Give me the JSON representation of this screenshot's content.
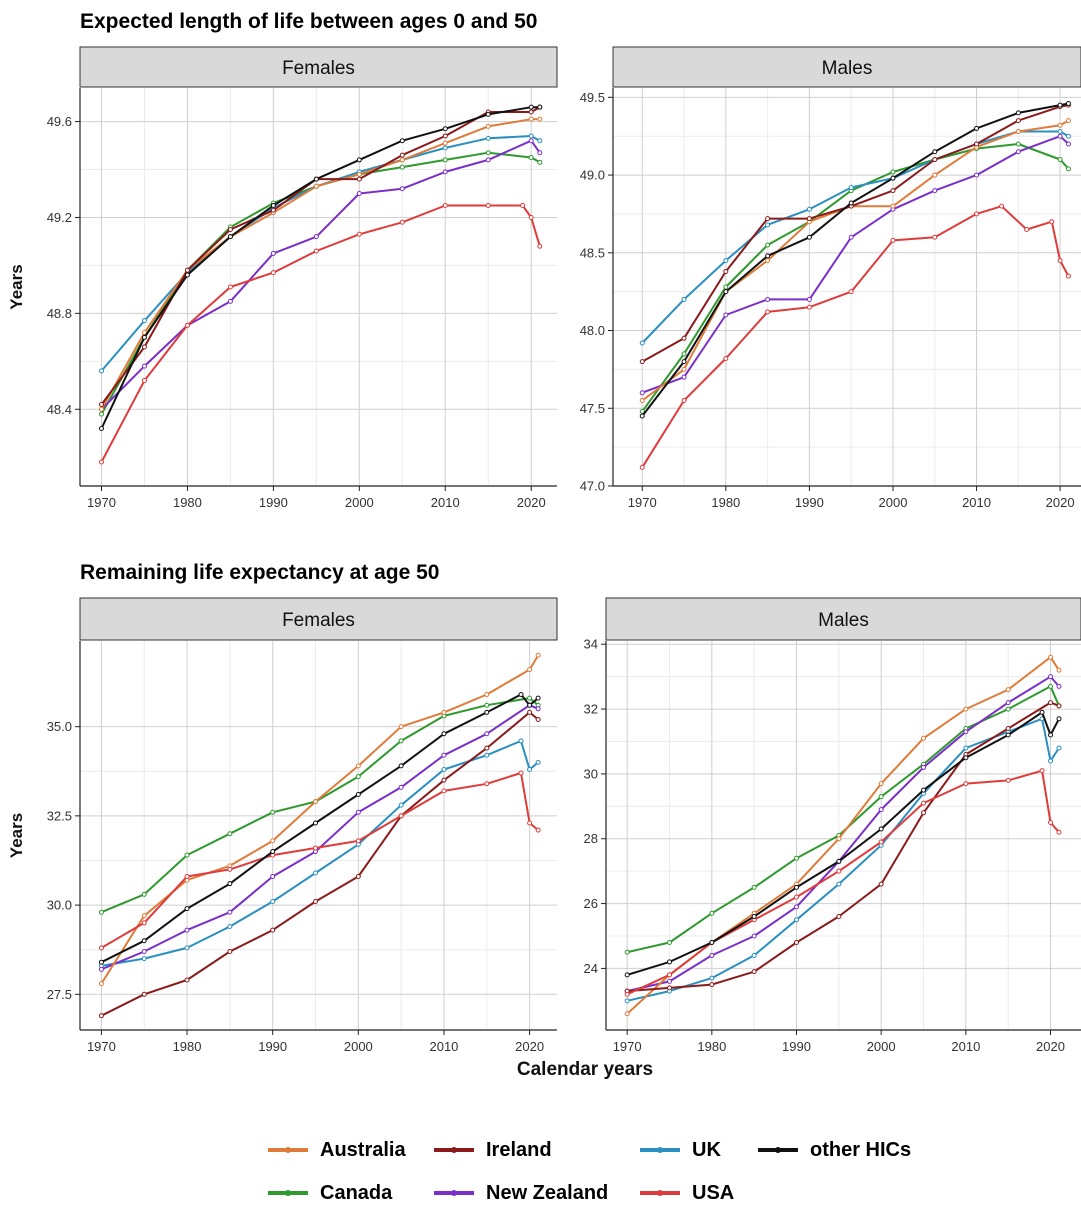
{
  "titles": {
    "top": "Expected length of life between ages 0 and 50",
    "bottom": "Remaining life expectancy at age 50"
  },
  "shared_xlabel": "Calendar years",
  "legend": [
    {
      "name": "Australia",
      "color": "#e07b39"
    },
    {
      "name": "Ireland",
      "color": "#8b1a1a"
    },
    {
      "name": "UK",
      "color": "#2a8fc1"
    },
    {
      "name": "other HICs",
      "color": "#111111"
    },
    {
      "name": "Canada",
      "color": "#2e9a2e"
    },
    {
      "name": "New Zealand",
      "color": "#7b2fc9"
    },
    {
      "name": "USA",
      "color": "#e03b3b"
    }
  ],
  "chart_data": [
    {
      "type": "line",
      "strip": "Females",
      "section": "Expected length of life between ages 0 and 50",
      "ylabel": "Years",
      "xlim": [
        1967.5,
        2023
      ],
      "ylim": [
        48.08,
        49.74
      ],
      "xticks": [
        1970,
        1980,
        1990,
        2000,
        2010,
        2020
      ],
      "yticks": [
        48.4,
        48.8,
        49.2,
        49.6
      ],
      "ytick_labels": [
        "48.4",
        "48.8",
        "49.2",
        "49.6"
      ],
      "series": [
        {
          "name": "Australia",
          "x": [
            1970,
            1975,
            1980,
            1985,
            1990,
            1995,
            2000,
            2005,
            2010,
            2015,
            2020,
            2021
          ],
          "y": [
            48.4,
            48.72,
            48.98,
            49.12,
            49.22,
            49.33,
            49.38,
            49.44,
            49.51,
            49.58,
            49.61,
            49.61
          ]
        },
        {
          "name": "Canada",
          "x": [
            1970,
            1975,
            1980,
            1985,
            1990,
            1995,
            2000,
            2005,
            2010,
            2015,
            2020,
            2021
          ],
          "y": [
            48.38,
            48.7,
            48.98,
            49.16,
            49.26,
            49.33,
            49.38,
            49.41,
            49.44,
            49.47,
            49.45,
            49.43
          ]
        },
        {
          "name": "Ireland",
          "x": [
            1970,
            1975,
            1980,
            1985,
            1990,
            1995,
            2000,
            2005,
            2010,
            2015,
            2020,
            2021
          ],
          "y": [
            48.42,
            48.66,
            48.98,
            49.15,
            49.23,
            49.36,
            49.36,
            49.46,
            49.54,
            49.64,
            49.64,
            49.66
          ]
        },
        {
          "name": "New Zealand",
          "x": [
            1970,
            1975,
            1980,
            1985,
            1990,
            1995,
            2000,
            2005,
            2010,
            2015,
            2020,
            2021
          ],
          "y": [
            48.4,
            48.58,
            48.75,
            48.85,
            49.05,
            49.12,
            49.3,
            49.32,
            49.39,
            49.44,
            49.52,
            49.47
          ]
        },
        {
          "name": "UK",
          "x": [
            1970,
            1975,
            1980,
            1985,
            1990,
            1995,
            2000,
            2005,
            2010,
            2015,
            2020,
            2021
          ],
          "y": [
            48.56,
            48.77,
            48.97,
            49.12,
            49.24,
            49.33,
            49.39,
            49.44,
            49.49,
            49.53,
            49.54,
            49.52
          ]
        },
        {
          "name": "USA",
          "x": [
            1970,
            1975,
            1980,
            1985,
            1990,
            1995,
            2000,
            2005,
            2010,
            2015,
            2019,
            2020,
            2021
          ],
          "y": [
            48.18,
            48.52,
            48.75,
            48.91,
            48.97,
            49.06,
            49.13,
            49.18,
            49.25,
            49.25,
            49.25,
            49.2,
            49.08
          ]
        },
        {
          "name": "other HICs",
          "x": [
            1970,
            1975,
            1980,
            1985,
            1990,
            1995,
            2000,
            2005,
            2010,
            2015,
            2020,
            2021
          ],
          "y": [
            48.32,
            48.7,
            48.96,
            49.12,
            49.25,
            49.36,
            49.44,
            49.52,
            49.57,
            49.63,
            49.66,
            49.66
          ]
        }
      ]
    },
    {
      "type": "line",
      "strip": "Males",
      "section": "Expected length of life between ages 0 and 50",
      "ylabel": "",
      "xlim": [
        1966.5,
        2022.5
      ],
      "ylim": [
        47.0,
        49.56
      ],
      "xticks": [
        1970,
        1980,
        1990,
        2000,
        2010,
        2020
      ],
      "yticks": [
        47.0,
        47.5,
        48.0,
        48.5,
        49.0,
        49.5
      ],
      "ytick_labels": [
        "47.0",
        "47.5",
        "48.0",
        "48.5",
        "49.0",
        "49.5"
      ],
      "series": [
        {
          "name": "Australia",
          "x": [
            1970,
            1975,
            1980,
            1985,
            1990,
            1995,
            2000,
            2005,
            2010,
            2015,
            2020,
            2021
          ],
          "y": [
            47.55,
            47.75,
            48.25,
            48.45,
            48.7,
            48.8,
            48.8,
            49.0,
            49.18,
            49.28,
            49.32,
            49.35
          ]
        },
        {
          "name": "Canada",
          "x": [
            1970,
            1975,
            1980,
            1985,
            1990,
            1995,
            2000,
            2005,
            2010,
            2015,
            2020,
            2021
          ],
          "y": [
            47.48,
            47.85,
            48.28,
            48.55,
            48.7,
            48.9,
            49.02,
            49.1,
            49.17,
            49.2,
            49.1,
            49.04
          ]
        },
        {
          "name": "Ireland",
          "x": [
            1970,
            1975,
            1980,
            1985,
            1990,
            1995,
            2000,
            2005,
            2010,
            2015,
            2020,
            2021
          ],
          "y": [
            47.8,
            47.95,
            48.38,
            48.72,
            48.72,
            48.8,
            48.9,
            49.1,
            49.2,
            49.35,
            49.44,
            49.45
          ]
        },
        {
          "name": "New Zealand",
          "x": [
            1970,
            1975,
            1980,
            1985,
            1990,
            1995,
            2000,
            2005,
            2010,
            2015,
            2020,
            2021
          ],
          "y": [
            47.6,
            47.7,
            48.1,
            48.2,
            48.2,
            48.6,
            48.78,
            48.9,
            49.0,
            49.15,
            49.25,
            49.2
          ]
        },
        {
          "name": "UK",
          "x": [
            1970,
            1975,
            1980,
            1985,
            1990,
            1995,
            2000,
            2005,
            2010,
            2015,
            2020,
            2021
          ],
          "y": [
            47.92,
            48.2,
            48.45,
            48.68,
            48.78,
            48.92,
            48.98,
            49.1,
            49.2,
            49.28,
            49.28,
            49.25
          ]
        },
        {
          "name": "USA",
          "x": [
            1970,
            1975,
            1980,
            1985,
            1990,
            1995,
            2000,
            2005,
            2010,
            2013,
            2016,
            2019,
            2020,
            2021
          ],
          "y": [
            47.12,
            47.55,
            47.82,
            48.12,
            48.15,
            48.25,
            48.58,
            48.6,
            48.75,
            48.8,
            48.65,
            48.7,
            48.45,
            48.35
          ]
        },
        {
          "name": "other HICs",
          "x": [
            1970,
            1975,
            1980,
            1985,
            1990,
            1995,
            2000,
            2005,
            2010,
            2015,
            2020,
            2021
          ],
          "y": [
            47.45,
            47.8,
            48.25,
            48.48,
            48.6,
            48.82,
            48.98,
            49.15,
            49.3,
            49.4,
            49.45,
            49.46
          ]
        }
      ]
    },
    {
      "type": "line",
      "strip": "Females",
      "section": "Remaining life expectancy at age 50",
      "ylabel": "Years",
      "xlim": [
        1967.5,
        2023.2
      ],
      "ylim": [
        26.5,
        37.4
      ],
      "xticks": [
        1970,
        1980,
        1990,
        2000,
        2010,
        2020
      ],
      "yticks": [
        27.5,
        30.0,
        32.5,
        35.0
      ],
      "ytick_labels": [
        "27.5",
        "30.0",
        "32.5",
        "35.0"
      ],
      "series": [
        {
          "name": "Australia",
          "x": [
            1970,
            1975,
            1980,
            1985,
            1990,
            1995,
            2000,
            2005,
            2010,
            2015,
            2020,
            2021
          ],
          "y": [
            27.8,
            29.7,
            30.7,
            31.1,
            31.8,
            32.9,
            33.9,
            35.0,
            35.4,
            35.9,
            36.6,
            37.0
          ]
        },
        {
          "name": "Canada",
          "x": [
            1970,
            1975,
            1980,
            1985,
            1990,
            1995,
            2000,
            2005,
            2010,
            2015,
            2020,
            2021
          ],
          "y": [
            29.8,
            30.3,
            31.4,
            32.0,
            32.6,
            32.9,
            33.6,
            34.6,
            35.3,
            35.6,
            35.8,
            35.6
          ]
        },
        {
          "name": "Ireland",
          "x": [
            1970,
            1975,
            1980,
            1985,
            1990,
            1995,
            2000,
            2005,
            2010,
            2015,
            2020,
            2021
          ],
          "y": [
            26.9,
            27.5,
            27.9,
            28.7,
            29.3,
            30.1,
            30.8,
            32.5,
            33.5,
            34.4,
            35.4,
            35.2
          ]
        },
        {
          "name": "New Zealand",
          "x": [
            1970,
            1975,
            1980,
            1985,
            1990,
            1995,
            2000,
            2005,
            2010,
            2015,
            2020,
            2021
          ],
          "y": [
            28.2,
            28.7,
            29.3,
            29.8,
            30.8,
            31.5,
            32.6,
            33.3,
            34.2,
            34.8,
            35.6,
            35.5
          ]
        },
        {
          "name": "UK",
          "x": [
            1970,
            1975,
            1980,
            1985,
            1990,
            1995,
            2000,
            2005,
            2010,
            2015,
            2019,
            2020,
            2021
          ],
          "y": [
            28.3,
            28.5,
            28.8,
            29.4,
            30.1,
            30.9,
            31.7,
            32.8,
            33.8,
            34.2,
            34.6,
            33.8,
            34.0
          ]
        },
        {
          "name": "USA",
          "x": [
            1970,
            1975,
            1980,
            1985,
            1990,
            1995,
            2000,
            2005,
            2010,
            2015,
            2019,
            2020,
            2021
          ],
          "y": [
            28.8,
            29.5,
            30.8,
            31.0,
            31.4,
            31.6,
            31.8,
            32.5,
            33.2,
            33.4,
            33.7,
            32.3,
            32.1
          ]
        },
        {
          "name": "other HICs",
          "x": [
            1970,
            1975,
            1980,
            1985,
            1990,
            1995,
            2000,
            2005,
            2010,
            2015,
            2019,
            2020,
            2021
          ],
          "y": [
            28.4,
            29.0,
            29.9,
            30.6,
            31.5,
            32.3,
            33.1,
            33.9,
            34.8,
            35.4,
            35.9,
            35.6,
            35.8
          ]
        }
      ]
    },
    {
      "type": "line",
      "strip": "Males",
      "section": "Remaining life expectancy at age 50",
      "ylabel": "",
      "xlim": [
        1967.5,
        2023.6
      ],
      "ylim": [
        22.1,
        34.1
      ],
      "xticks": [
        1970,
        1980,
        1990,
        2000,
        2010,
        2020
      ],
      "yticks": [
        24,
        26,
        28,
        30,
        32,
        34
      ],
      "ytick_labels": [
        "24",
        "26",
        "28",
        "30",
        "32",
        "34"
      ],
      "series": [
        {
          "name": "Australia",
          "x": [
            1970,
            1975,
            1980,
            1985,
            1990,
            1995,
            2000,
            2005,
            2010,
            2015,
            2020,
            2021
          ],
          "y": [
            22.6,
            23.8,
            24.8,
            25.7,
            26.6,
            28.0,
            29.7,
            31.1,
            32.0,
            32.6,
            33.6,
            33.2
          ]
        },
        {
          "name": "Canada",
          "x": [
            1970,
            1975,
            1980,
            1985,
            1990,
            1995,
            2000,
            2005,
            2010,
            2015,
            2020,
            2021
          ],
          "y": [
            24.5,
            24.8,
            25.7,
            26.5,
            27.4,
            28.1,
            29.3,
            30.3,
            31.4,
            32.0,
            32.7,
            32.1
          ]
        },
        {
          "name": "Ireland",
          "x": [
            1970,
            1975,
            1980,
            1985,
            1990,
            1995,
            2000,
            2005,
            2010,
            2015,
            2020,
            2021
          ],
          "y": [
            23.3,
            23.4,
            23.5,
            23.9,
            24.8,
            25.6,
            26.6,
            28.8,
            30.6,
            31.4,
            32.2,
            32.1
          ]
        },
        {
          "name": "New Zealand",
          "x": [
            1970,
            1975,
            1980,
            1985,
            1990,
            1995,
            2000,
            2005,
            2010,
            2015,
            2020,
            2021
          ],
          "y": [
            23.3,
            23.6,
            24.4,
            25.0,
            25.9,
            27.3,
            28.9,
            30.2,
            31.3,
            32.2,
            33.0,
            32.7
          ]
        },
        {
          "name": "UK",
          "x": [
            1970,
            1975,
            1980,
            1985,
            1990,
            1995,
            2000,
            2005,
            2010,
            2015,
            2019,
            2020,
            2021
          ],
          "y": [
            23.0,
            23.3,
            23.7,
            24.4,
            25.5,
            26.6,
            27.8,
            29.4,
            30.8,
            31.3,
            31.7,
            30.4,
            30.8
          ]
        },
        {
          "name": "USA",
          "x": [
            1970,
            1975,
            1980,
            1985,
            1990,
            1995,
            2000,
            2005,
            2010,
            2015,
            2019,
            2020,
            2021
          ],
          "y": [
            23.2,
            23.8,
            24.8,
            25.5,
            26.2,
            27.0,
            27.9,
            29.1,
            29.7,
            29.8,
            30.1,
            28.5,
            28.2
          ]
        },
        {
          "name": "other HICs",
          "x": [
            1970,
            1975,
            1980,
            1985,
            1990,
            1995,
            2000,
            2005,
            2010,
            2015,
            2019,
            2020,
            2021
          ],
          "y": [
            23.8,
            24.2,
            24.8,
            25.6,
            26.5,
            27.3,
            28.3,
            29.5,
            30.5,
            31.2,
            31.9,
            31.2,
            31.7
          ]
        }
      ]
    }
  ]
}
